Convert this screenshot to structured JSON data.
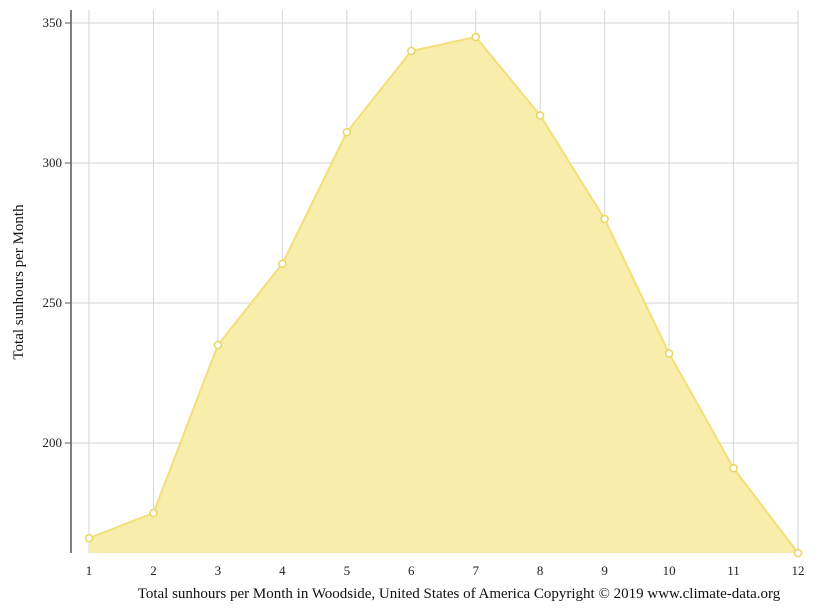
{
  "chart_data": {
    "type": "area",
    "title": "",
    "xlabel": "",
    "ylabel": "Total sunhours per Month",
    "x": [
      1,
      2,
      3,
      4,
      5,
      6,
      7,
      8,
      9,
      10,
      11,
      12
    ],
    "series": [
      {
        "values": [
          166,
          175,
          235,
          264,
          311,
          340,
          345,
          317,
          280,
          232,
          191,
          160
        ]
      }
    ],
    "ylim": [
      160,
      354
    ],
    "yticks": [
      200,
      250,
      300,
      350
    ],
    "xlim": [
      1,
      12
    ],
    "grid": true,
    "caption": "Total sunhours per Month in Woodside, United States of America Copyright © 2019 www.climate-data.org",
    "colors": {
      "fill": "#f9eca6",
      "line": "#f3df79",
      "marker_stroke": "#e9d560",
      "marker_fill": "#ffffff",
      "grid": "#d6d6d6",
      "axis": "#555555"
    }
  }
}
